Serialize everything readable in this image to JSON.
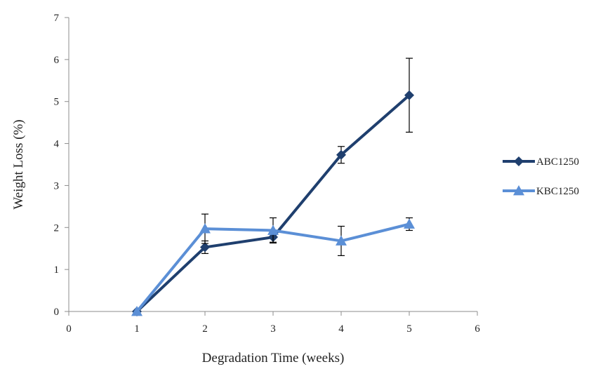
{
  "chart_data": {
    "type": "line",
    "xlabel": "Degradation Time (weeks)",
    "ylabel": "Weight Loss (%)",
    "xlim": [
      0,
      6
    ],
    "ylim": [
      0,
      7
    ],
    "xticks": [
      0,
      1,
      2,
      3,
      4,
      5,
      6
    ],
    "yticks": [
      0,
      1,
      2,
      3,
      4,
      5,
      6,
      7
    ],
    "grid": false,
    "legend_position": "right",
    "series": [
      {
        "name": "ABC1250",
        "color": "#1f3f6e",
        "marker": "diamond",
        "x": [
          1,
          2,
          3,
          4,
          5
        ],
        "y": [
          0,
          1.53,
          1.77,
          3.73,
          5.15
        ],
        "error": [
          0,
          0.15,
          0.12,
          0.2,
          0.88
        ]
      },
      {
        "name": "KBC1250",
        "color": "#5b8fd6",
        "marker": "triangle",
        "x": [
          1,
          2,
          3,
          4,
          5
        ],
        "y": [
          0,
          1.97,
          1.93,
          1.68,
          2.08
        ],
        "error": [
          0,
          0.35,
          0.3,
          0.35,
          0.15
        ]
      }
    ]
  }
}
